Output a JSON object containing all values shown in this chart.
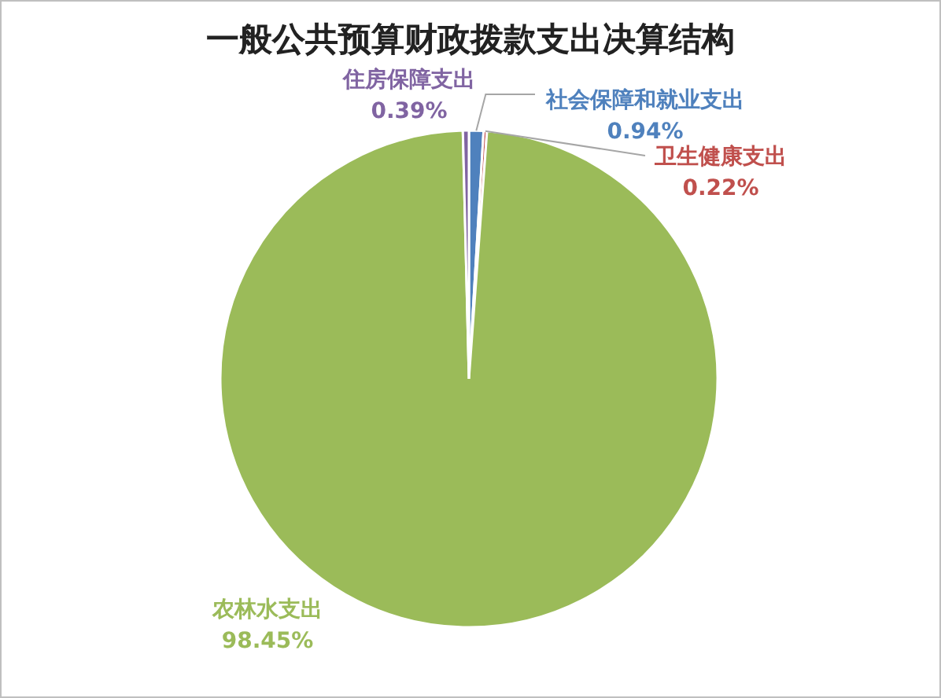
{
  "chart_data": {
    "type": "pie",
    "title": "一般公共预算财政拨款支出决算结构",
    "categories": [
      "社会保障和就业支出",
      "卫生健康支出",
      "农林水支出",
      "住房保障支出"
    ],
    "values": [
      0.94,
      0.22,
      98.45,
      0.39
    ],
    "value_labels": [
      "0.94%",
      "0.22%",
      "98.45%",
      "0.39%"
    ],
    "colors": [
      "#4f81bd",
      "#c0504d",
      "#9bbb59",
      "#8064a2"
    ],
    "legend": false
  }
}
